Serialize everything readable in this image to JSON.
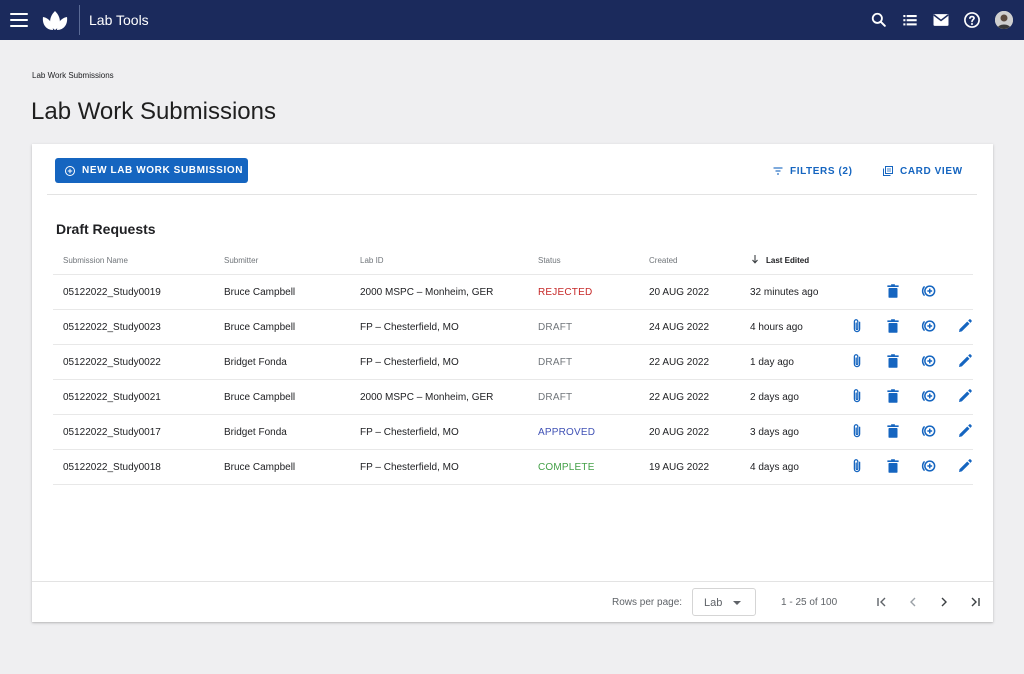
{
  "app": {
    "title": "Lab Tools"
  },
  "header": {
    "icons": [
      "menu-icon",
      "logo",
      "search-icon",
      "list-icon",
      "mail-icon",
      "help-icon",
      "avatar"
    ]
  },
  "breadcrumb": "Lab Work Submissions",
  "page_title": "Lab Work Submissions",
  "toolbar": {
    "new_label": "NEW LAB WORK SUBMISSION",
    "filters_label": "FILTERS (2)",
    "card_view_label": "CARD VIEW"
  },
  "section_title": "Draft Requests",
  "columns": [
    "Submission Name",
    "Submitter",
    "Lab ID",
    "Status",
    "Created",
    "Last Edited"
  ],
  "rows": [
    {
      "name": "05122022_Study0019",
      "submitter": "Bruce Campbell",
      "lab": "2000 MSPC – Monheim, GER",
      "status": "REJECTED",
      "created": "20 AUG 2022",
      "edited": "32 minutes ago"
    },
    {
      "name": "05122022_Study0023",
      "submitter": "Bruce Campbell",
      "lab": "FP – Chesterfield, MO",
      "status": "DRAFT",
      "created": "24 AUG 2022",
      "edited": "4 hours ago"
    },
    {
      "name": "05122022_Study0022",
      "submitter": "Bridget Fonda",
      "lab": "FP – Chesterfield, MO",
      "status": "DRAFT",
      "created": "22 AUG 2022",
      "edited": "1 day ago"
    },
    {
      "name": "05122022_Study0021",
      "submitter": "Bruce Campbell",
      "lab": "2000 MSPC – Monheim, GER",
      "status": "DRAFT",
      "created": "22 AUG 2022",
      "edited": "2 days ago"
    },
    {
      "name": "05122022_Study0017",
      "submitter": "Bridget Fonda",
      "lab": "FP – Chesterfield, MO",
      "status": "APPROVED",
      "created": "20 AUG 2022",
      "edited": "3 days ago"
    },
    {
      "name": "05122022_Study0018",
      "submitter": "Bruce Campbell",
      "lab": "FP – Chesterfield, MO",
      "status": "COMPLETE",
      "created": "19 AUG 2022",
      "edited": "4 days ago"
    }
  ],
  "status_colors": {
    "REJECTED": "#c62828",
    "DRAFT": "#70757a",
    "APPROVED": "#3f51b5",
    "COMPLETE": "#43a047"
  },
  "row_actions": [
    "attach-icon",
    "delete-icon",
    "add-circle-icon",
    "edit-icon"
  ],
  "pagination": {
    "rows_per_page_label": "Rows per page:",
    "rows_per_page_value": "Lab",
    "range": "1 - 25 of 100"
  },
  "colors": {
    "topbar": "#1b2a5c",
    "accent": "#1565c0",
    "background": "#efeff1"
  }
}
